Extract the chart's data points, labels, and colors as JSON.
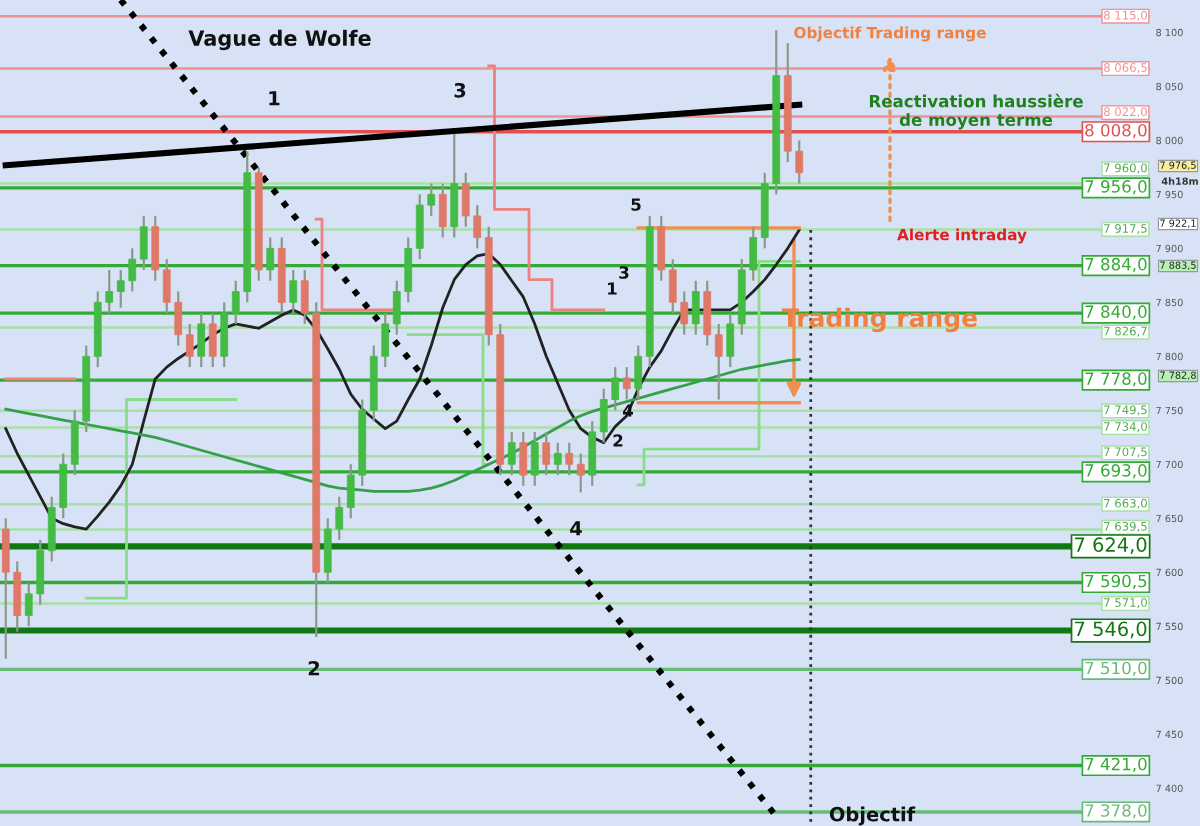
{
  "chart_data": {
    "type": "candlestick",
    "title": "Vague de Wolfe",
    "categories": [
      null,
      null,
      null,
      null,
      null,
      null,
      null,
      null,
      null,
      null,
      null,
      null,
      null,
      null,
      null,
      null,
      null,
      null,
      null,
      null,
      null,
      null,
      null,
      null,
      null,
      null,
      null,
      null,
      null,
      null,
      null,
      null,
      null,
      null,
      null,
      null,
      null,
      null,
      null,
      null,
      null,
      null,
      null,
      null,
      null,
      null,
      null,
      null,
      null,
      null,
      null,
      null,
      null,
      null,
      null,
      null,
      null,
      null,
      null,
      null,
      null,
      null,
      null,
      null,
      null,
      null,
      null,
      null,
      null,
      null
    ],
    "ohlc": [
      [
        7640,
        7650,
        7520,
        7600
      ],
      [
        7600,
        7610,
        7545,
        7560
      ],
      [
        7560,
        7590,
        7550,
        7580
      ],
      [
        7580,
        7630,
        7570,
        7620
      ],
      [
        7620,
        7670,
        7610,
        7660
      ],
      [
        7660,
        7710,
        7650,
        7700
      ],
      [
        7700,
        7750,
        7690,
        7740
      ],
      [
        7740,
        7810,
        7730,
        7800
      ],
      [
        7800,
        7860,
        7790,
        7850
      ],
      [
        7850,
        7880,
        7840,
        7860
      ],
      [
        7860,
        7880,
        7845,
        7870
      ],
      [
        7870,
        7900,
        7860,
        7890
      ],
      [
        7890,
        7930,
        7880,
        7920
      ],
      [
        7920,
        7930,
        7870,
        7880
      ],
      [
        7880,
        7890,
        7840,
        7850
      ],
      [
        7850,
        7860,
        7810,
        7820
      ],
      [
        7820,
        7830,
        7790,
        7800
      ],
      [
        7800,
        7840,
        7790,
        7830
      ],
      [
        7830,
        7840,
        7790,
        7800
      ],
      [
        7800,
        7850,
        7790,
        7840
      ],
      [
        7840,
        7870,
        7830,
        7860
      ],
      [
        7860,
        7990,
        7850,
        7970
      ],
      [
        7970,
        7975,
        7870,
        7880
      ],
      [
        7880,
        7910,
        7870,
        7900
      ],
      [
        7900,
        7910,
        7840,
        7850
      ],
      [
        7850,
        7880,
        7840,
        7870
      ],
      [
        7870,
        7880,
        7830,
        7840
      ],
      [
        7840,
        7850,
        7540,
        7600
      ],
      [
        7600,
        7650,
        7590,
        7640
      ],
      [
        7640,
        7670,
        7630,
        7660
      ],
      [
        7660,
        7700,
        7650,
        7690
      ],
      [
        7690,
        7760,
        7680,
        7750
      ],
      [
        7750,
        7810,
        7740,
        7800
      ],
      [
        7800,
        7840,
        7790,
        7830
      ],
      [
        7830,
        7870,
        7820,
        7860
      ],
      [
        7860,
        7910,
        7850,
        7900
      ],
      [
        7900,
        7950,
        7890,
        7940
      ],
      [
        7940,
        7960,
        7930,
        7950
      ],
      [
        7950,
        7960,
        7910,
        7920
      ],
      [
        7920,
        8006,
        7910,
        7960
      ],
      [
        7960,
        7970,
        7920,
        7930
      ],
      [
        7930,
        7940,
        7900,
        7910
      ],
      [
        7910,
        7920,
        7810,
        7820
      ],
      [
        7820,
        7830,
        7690,
        7700
      ],
      [
        7700,
        7730,
        7690,
        7720
      ],
      [
        7720,
        7730,
        7680,
        7690
      ],
      [
        7690,
        7730,
        7680,
        7720
      ],
      [
        7720,
        7730,
        7690,
        7700
      ],
      [
        7700,
        7720,
        7690,
        7710
      ],
      [
        7710,
        7720,
        7690,
        7700
      ],
      [
        7700,
        7710,
        7674,
        7690
      ],
      [
        7690,
        7740,
        7680,
        7730
      ],
      [
        7730,
        7770,
        7720,
        7760
      ],
      [
        7760,
        7790,
        7750,
        7780
      ],
      [
        7780,
        7790,
        7760,
        7770
      ],
      [
        7770,
        7810,
        7760,
        7800
      ],
      [
        7800,
        7930,
        7790,
        7920
      ],
      [
        7920,
        7930,
        7870,
        7880
      ],
      [
        7880,
        7890,
        7840,
        7850
      ],
      [
        7850,
        7860,
        7820,
        7830
      ],
      [
        7830,
        7870,
        7820,
        7860
      ],
      [
        7860,
        7870,
        7810,
        7820
      ],
      [
        7820,
        7830,
        7760,
        7800
      ],
      [
        7800,
        7840,
        7790,
        7830
      ],
      [
        7830,
        7890,
        7820,
        7880
      ],
      [
        7880,
        7920,
        7870,
        7910
      ],
      [
        7910,
        7970,
        7900,
        7960
      ],
      [
        7960,
        8102,
        7950,
        8060
      ],
      [
        8060,
        8090,
        7980,
        7990
      ],
      [
        7990,
        8000,
        7960,
        7970
      ]
    ],
    "series": [
      {
        "type": "line",
        "color": "#222222",
        "values": [
          7733,
          7710,
          7690,
          7670,
          7650,
          7645,
          7642,
          7640,
          7652,
          7665,
          7680,
          7700,
          7740,
          7779,
          7790,
          7798,
          7805,
          7812,
          7820,
          7826,
          7830,
          7828,
          7826,
          7832,
          7838,
          7843,
          7838,
          7825,
          7807,
          7788,
          7765,
          7751,
          7742,
          7733,
          7740,
          7760,
          7779,
          7810,
          7845,
          7871,
          7885,
          7893,
          7895,
          7885,
          7870,
          7855,
          7830,
          7800,
          7775,
          7750,
          7733,
          7725,
          7720,
          7735,
          7745,
          7770,
          7790,
          7805,
          7825,
          7843,
          7843,
          7843,
          7843,
          7843,
          7850,
          7860,
          7871,
          7885,
          7900,
          7917
        ]
      },
      {
        "type": "line",
        "color": "#33a04a",
        "values": [
          7751,
          7749,
          7747,
          7745,
          7743,
          7741,
          7739,
          7737,
          7735,
          7733,
          7731,
          7729,
          7727,
          7725,
          7722,
          7719,
          7716,
          7713,
          7710,
          7707,
          7704,
          7701,
          7698,
          7695,
          7692,
          7689,
          7686,
          7683,
          7680,
          7678,
          7677,
          7676,
          7675,
          7675,
          7675,
          7675,
          7676,
          7678,
          7681,
          7685,
          7690,
          7695,
          7700,
          7705,
          7710,
          7716,
          7722,
          7728,
          7734,
          7740,
          7745,
          7749,
          7752,
          7755,
          7758,
          7761,
          7764,
          7767,
          7770,
          7773,
          7776,
          7779,
          7782,
          7785,
          7788,
          7790,
          7792,
          7794,
          7796,
          7797
        ]
      },
      {
        "type": "step",
        "color": "#ee8080",
        "values": [
          7779,
          7779,
          7779,
          7779,
          7779,
          7779,
          7779,
          null,
          null,
          null,
          null,
          null,
          null,
          null,
          null,
          null,
          null,
          null,
          null,
          null,
          null,
          null,
          null,
          null,
          null,
          null,
          null,
          7927,
          7843,
          7843,
          7843,
          7843,
          7843,
          7843,
          7843,
          null,
          null,
          null,
          null,
          null,
          null,
          null,
          8069,
          7936,
          7936,
          7936,
          7871,
          7871,
          7843,
          7843,
          7843,
          7843,
          7843,
          null,
          null,
          null,
          null,
          null,
          null,
          null,
          null,
          null,
          null,
          null,
          null,
          null,
          null,
          null,
          null,
          null
        ]
      },
      {
        "type": "step",
        "color": "#88dd88",
        "values": [
          null,
          null,
          null,
          null,
          null,
          null,
          null,
          7576,
          7576,
          7576,
          7576,
          7760,
          7760,
          7760,
          7760,
          7760,
          7760,
          7760,
          7760,
          7760,
          7760,
          null,
          null,
          null,
          null,
          null,
          null,
          null,
          null,
          null,
          null,
          null,
          null,
          null,
          null,
          7820,
          7820,
          7820,
          7820,
          7820,
          7820,
          7820,
          7700,
          null,
          null,
          null,
          null,
          null,
          null,
          null,
          null,
          null,
          null,
          null,
          null,
          7681,
          7714,
          7714,
          7714,
          7714,
          7714,
          7714,
          7714,
          7714,
          7714,
          7714,
          7888,
          7888,
          7888,
          7888
        ]
      },
      {
        "type": "line",
        "color": "#000000",
        "values": [
          7977,
          null,
          null,
          null,
          null,
          null,
          null,
          null,
          null,
          null,
          null,
          null,
          null,
          null,
          null,
          null,
          null,
          null,
          null,
          null,
          null,
          null,
          null,
          null,
          null,
          null,
          null,
          null,
          null,
          null,
          null,
          null,
          null,
          null,
          null,
          null,
          null,
          null,
          null,
          null,
          null,
          null,
          null,
          null,
          null,
          null,
          null,
          null,
          null,
          null,
          null,
          null,
          null,
          null,
          null,
          null,
          null,
          null,
          null,
          null,
          null,
          null,
          null,
          null,
          null,
          null,
          null,
          null,
          null,
          8033
        ]
      },
      {
        "type": "line",
        "color": "#000000",
        "line_style": "dotted",
        "values": [
          null,
          null,
          null,
          null,
          null,
          null,
          null,
          null,
          null,
          null,
          8130,
          null,
          null,
          null,
          null,
          null,
          null,
          null,
          null,
          null,
          null,
          null,
          null,
          null,
          null,
          null,
          null,
          null,
          null,
          null,
          null,
          null,
          null,
          null,
          null,
          null,
          null,
          null,
          null,
          null,
          null,
          null,
          null,
          null,
          null,
          null,
          null,
          null,
          null,
          null,
          null,
          null,
          null,
          null,
          null,
          null,
          null,
          null,
          null,
          null,
          null,
          null,
          null,
          null,
          null,
          null,
          null,
          7374,
          null,
          null
        ]
      },
      {
        "type": "line",
        "color": "#f09050",
        "values": [
          null,
          null,
          null,
          null,
          null,
          null,
          null,
          null,
          null,
          null,
          null,
          null,
          null,
          null,
          null,
          null,
          null,
          null,
          null,
          null,
          null,
          null,
          null,
          null,
          null,
          null,
          null,
          null,
          null,
          null,
          null,
          null,
          null,
          null,
          null,
          null,
          null,
          null,
          null,
          null,
          null,
          null,
          null,
          null,
          null,
          null,
          null,
          null,
          null,
          null,
          null,
          null,
          null,
          null,
          null,
          7919,
          null,
          null,
          null,
          null,
          null,
          null,
          null,
          null,
          null,
          null,
          null,
          null,
          null,
          7919
        ]
      },
      {
        "type": "line",
        "color": "#f09050",
        "values": [
          null,
          null,
          null,
          null,
          null,
          null,
          null,
          null,
          null,
          null,
          null,
          null,
          null,
          null,
          null,
          null,
          null,
          null,
          null,
          null,
          null,
          null,
          null,
          null,
          null,
          null,
          null,
          null,
          null,
          null,
          null,
          null,
          null,
          null,
          null,
          null,
          null,
          null,
          null,
          null,
          null,
          null,
          null,
          null,
          null,
          null,
          null,
          null,
          null,
          null,
          null,
          null,
          null,
          null,
          null,
          7757,
          null,
          null,
          null,
          null,
          null,
          null,
          null,
          null,
          null,
          null,
          null,
          null,
          null,
          7757
        ]
      }
    ],
    "ylim": [
      7365,
      8130
    ],
    "yticks": [
      {
        "value": 7400,
        "label": "7 400"
      },
      {
        "value": 7450,
        "label": "7 450"
      },
      {
        "value": 7500,
        "label": "7 500"
      },
      {
        "value": 7550,
        "label": "7 550"
      },
      {
        "value": 7600,
        "label": "7 600"
      },
      {
        "value": 7650,
        "label": "7 650"
      },
      {
        "value": 7700,
        "label": "7 700"
      },
      {
        "value": 7750,
        "label": "7 750"
      },
      {
        "value": 7800,
        "label": "7 800"
      },
      {
        "value": 7850,
        "label": "7 850"
      },
      {
        "value": 7900,
        "label": "7 900"
      },
      {
        "value": 7950,
        "label": "7 950"
      },
      {
        "value": 8000,
        "label": "8 000"
      },
      {
        "value": 8050,
        "label": "8 050"
      },
      {
        "value": 8100,
        "label": "8 100"
      }
    ],
    "tick_labels": "y",
    "ref_lines": [
      {
        "axis": "y",
        "value": 8115,
        "label": "8 115,0",
        "color": "#f09090"
      },
      {
        "axis": "y",
        "value": 8066.5,
        "label": "8 066,5",
        "color": "#f09090"
      },
      {
        "axis": "y",
        "value": 8022,
        "label": "8 022,0",
        "color": "#f09090"
      },
      {
        "axis": "y",
        "value": 8008,
        "label": "8 008,0",
        "color": "#e05050"
      },
      {
        "axis": "y",
        "value": 7960,
        "label": "7 960,0",
        "color": "#a8e0a8"
      },
      {
        "axis": "y",
        "value": 7956,
        "label": "7 956,0",
        "color": "#33aa33"
      },
      {
        "axis": "y",
        "value": 7917.5,
        "label": "7 917,5",
        "color": "#a8e0a8"
      },
      {
        "axis": "y",
        "value": 7884,
        "label": "7 884,0",
        "color": "#33aa33"
      },
      {
        "axis": "y",
        "value": 7840,
        "label": "7 840,0",
        "color": "#33aa33"
      },
      {
        "axis": "y",
        "value": 7826.7,
        "label": "7 826,7",
        "color": "#a8e0a8"
      },
      {
        "axis": "y",
        "value": 7778,
        "label": "7 778,0",
        "color": "#33aa33"
      },
      {
        "axis": "y",
        "value": 7749.5,
        "label": "7 749,5",
        "color": "#a8e0a8"
      },
      {
        "axis": "y",
        "value": 7734,
        "label": "7 734,0",
        "color": "#a8e0a8"
      },
      {
        "axis": "y",
        "value": 7707.5,
        "label": "7 707,5",
        "color": "#a8e0a8"
      },
      {
        "axis": "y",
        "value": 7693,
        "label": "7 693,0",
        "color": "#33aa33"
      },
      {
        "axis": "y",
        "value": 7663,
        "label": "7 663,0",
        "color": "#a8e0a8"
      },
      {
        "axis": "y",
        "value": 7639.5,
        "label": "7 639,5",
        "color": "#a8e0a8"
      },
      {
        "axis": "y",
        "value": 7624,
        "label": "7 624,0",
        "color": "#117711"
      },
      {
        "axis": "y",
        "value": 7590.5,
        "label": "7 590,5",
        "color": "#33aa33"
      },
      {
        "axis": "y",
        "value": 7571,
        "label": "7 571,0",
        "color": "#a8e0a8"
      },
      {
        "axis": "y",
        "value": 7546,
        "label": "7 546,0",
        "color": "#117711"
      },
      {
        "axis": "y",
        "value": 7510,
        "label": "7 510,0",
        "color": "#66bb77"
      },
      {
        "axis": "y",
        "value": 7421,
        "label": "7 421,0",
        "color": "#33aa33"
      },
      {
        "axis": "y",
        "value": 7378,
        "label": "7 378,0",
        "color": "#66bb77"
      }
    ],
    "annotations": [
      "1",
      "3",
      "2",
      "4",
      "5",
      "1",
      "3",
      "2",
      "4",
      "Objectif Trading range",
      "Reactivation haussière\nde moyen terme",
      "Alerte intraday",
      "Trading range",
      "Objectif",
      "4h18m",
      "7 976,5",
      "7 922,1",
      "7 883,5",
      "7 782,8"
    ]
  }
}
